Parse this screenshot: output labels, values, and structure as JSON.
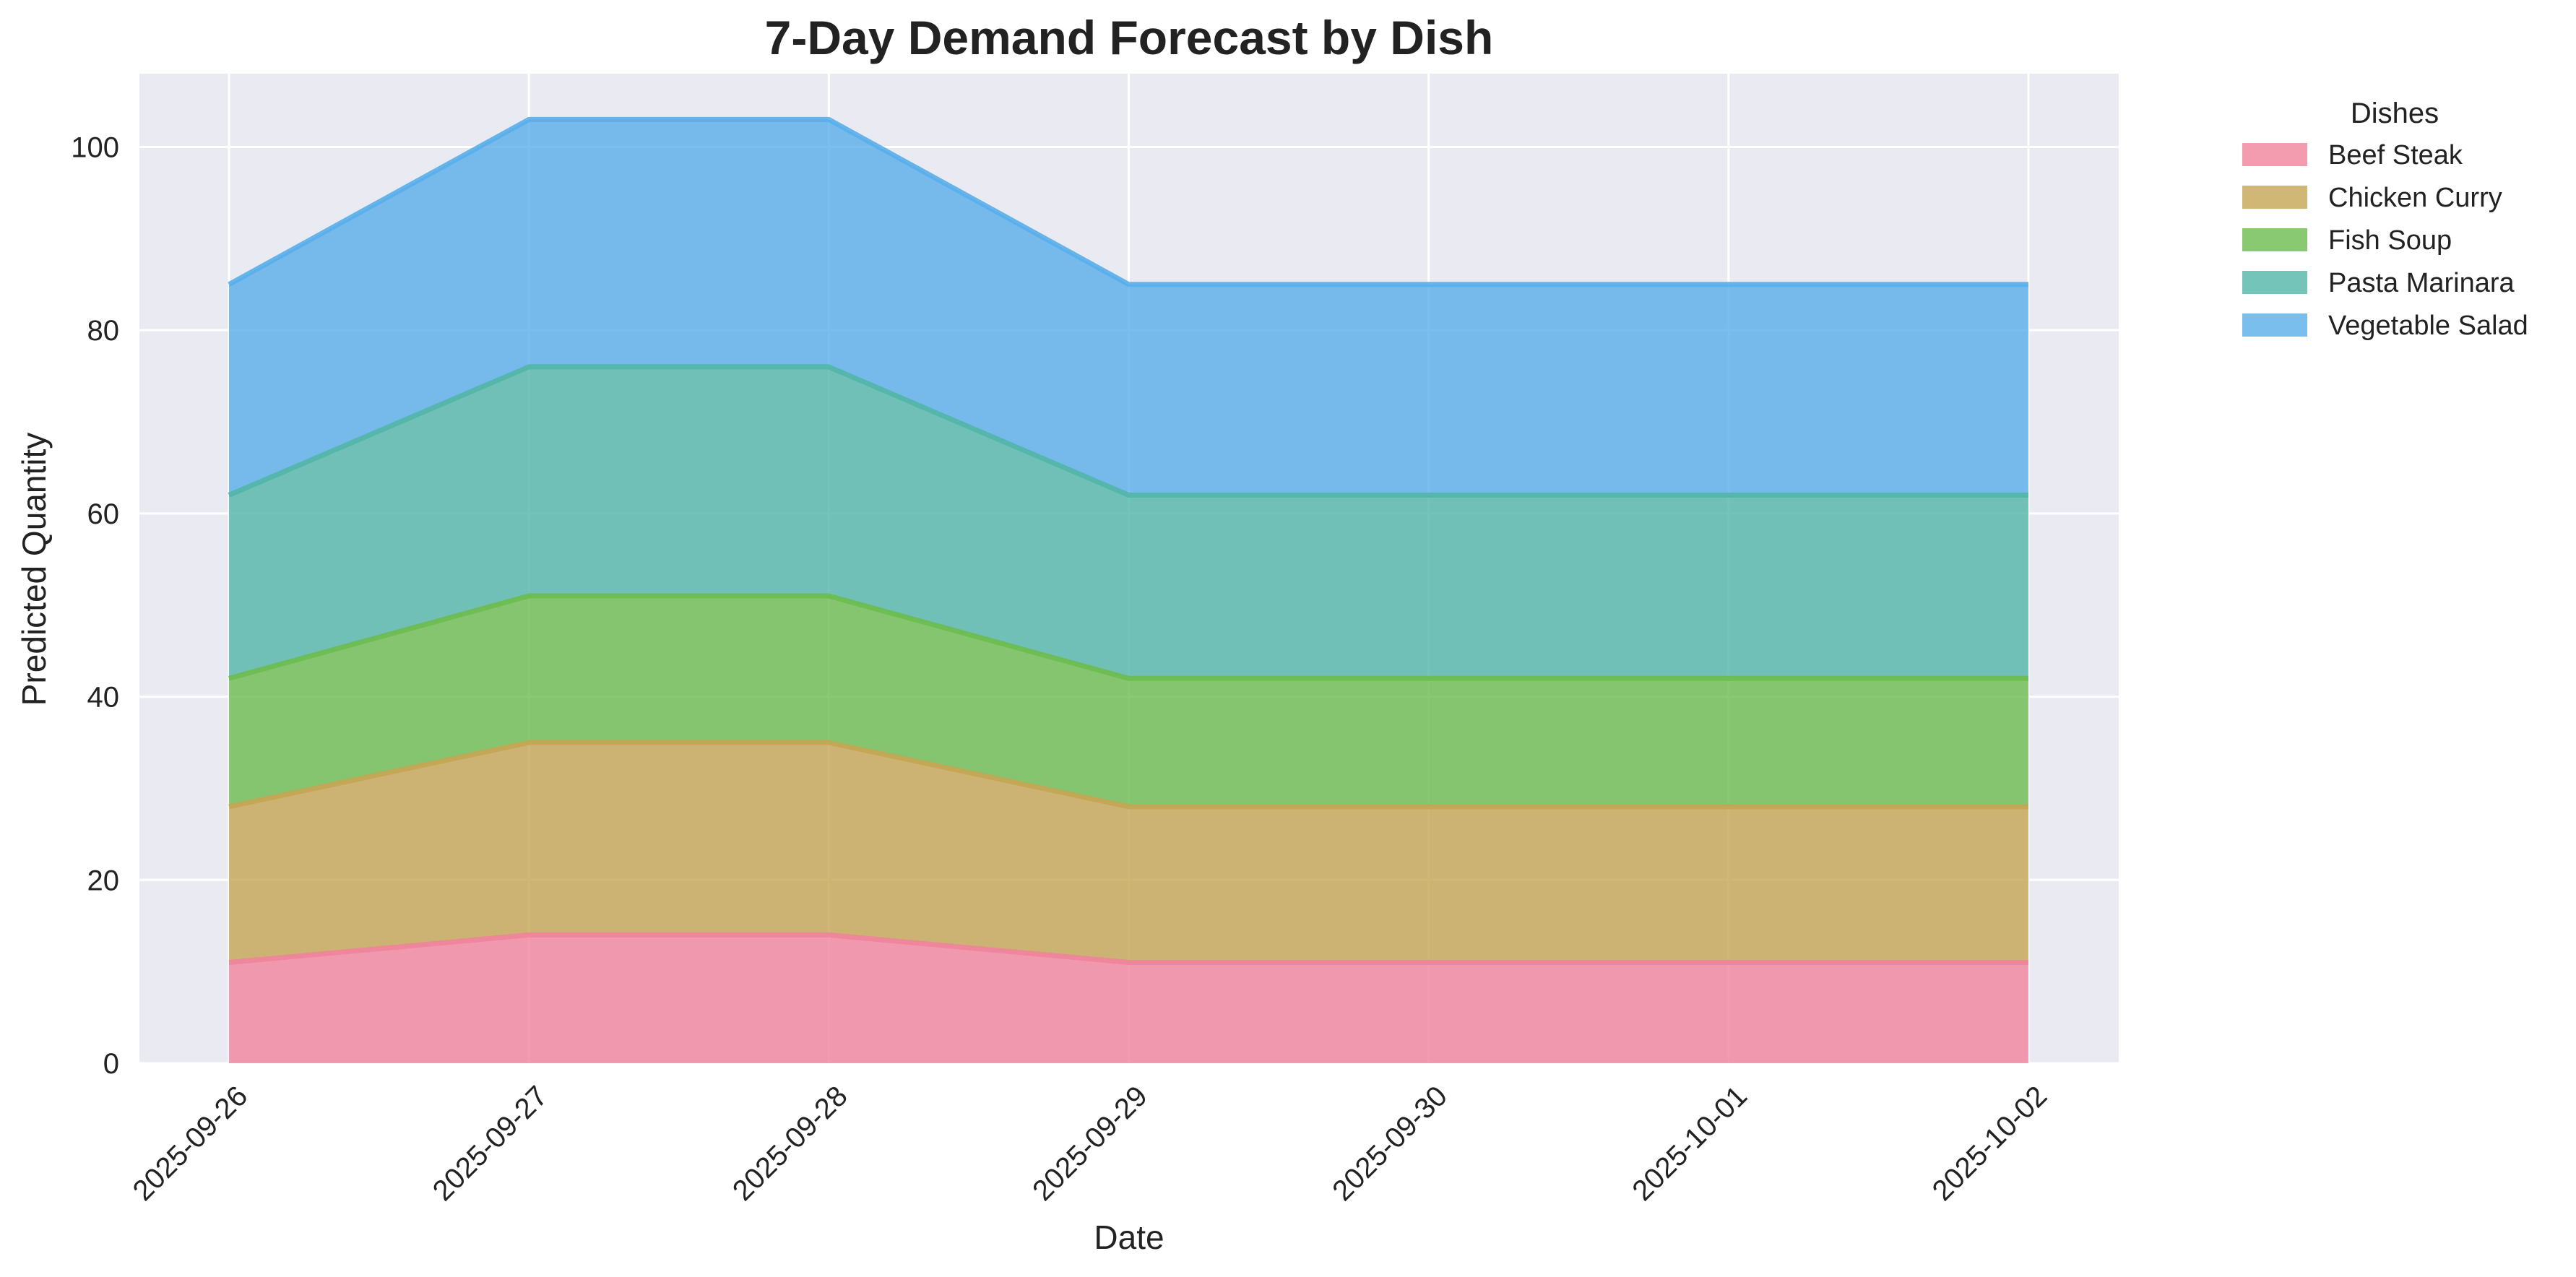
{
  "chart_data": {
    "type": "area",
    "stacked": true,
    "title": "7-Day Demand Forecast by Dish",
    "xlabel": "Date",
    "ylabel": "Predicted Quantity",
    "ylim": [
      0,
      108
    ],
    "yticks": [
      0,
      20,
      40,
      60,
      80,
      100
    ],
    "grid": true,
    "background": "#eaeaf2",
    "legend": {
      "title": "Dishes",
      "placement": "outside-top-right"
    },
    "x": [
      "2025-09-26",
      "2025-09-27",
      "2025-09-28",
      "2025-09-29",
      "2025-09-30",
      "2025-10-01",
      "2025-10-02"
    ],
    "series": [
      {
        "name": "Beef Steak",
        "color": "#f0839c",
        "values": [
          11,
          14,
          14,
          11,
          11,
          11,
          11
        ]
      },
      {
        "name": "Chicken Curry",
        "color": "#c4a553",
        "values": [
          17,
          21,
          21,
          17,
          17,
          17,
          17
        ]
      },
      {
        "name": "Fish Soup",
        "color": "#6cbc4f",
        "values": [
          14,
          16,
          16,
          14,
          14,
          14,
          14
        ]
      },
      {
        "name": "Pasta Marinara",
        "color": "#52b5a8",
        "values": [
          20,
          25,
          25,
          20,
          20,
          20,
          20
        ]
      },
      {
        "name": "Vegetable Salad",
        "color": "#59aeea",
        "values": [
          23,
          27,
          27,
          23,
          23,
          23,
          23
        ]
      }
    ]
  }
}
